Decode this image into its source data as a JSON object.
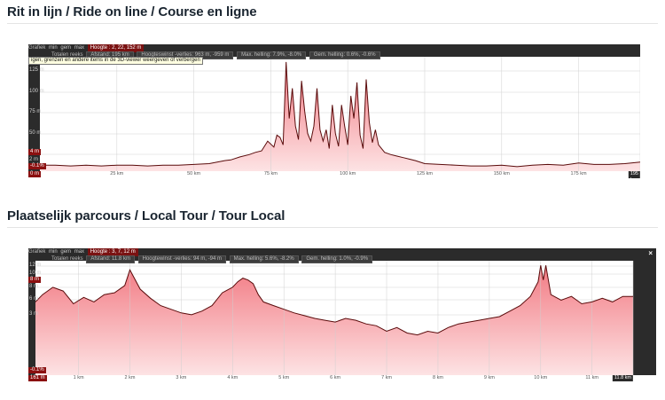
{
  "sections": [
    {
      "title": "Rit in lijn / Ride on line / Course en ligne",
      "header": {
        "grafiek": "Grafiek",
        "mn": "min",
        "gem": "gem",
        "max": "max",
        "hoogte": "Hoogte : 2, 22, 152 m",
        "totalen": "Totalen reeks",
        "afstand": "Afstand: 195 km",
        "hoogteverschil": "Hoogteswinst -verlies: 963 m, -959 m",
        "max_helling": "Max. helling: 7.9%, -8.0%",
        "gem_helling": "Gem. helling: 0.6%, -0.6%"
      },
      "tooltip": "igen, grenzen en andere items in de 3D-viewer weergeven of verbergen",
      "y_ticks": [
        "125 m",
        "100 m",
        "75 m",
        "50 m",
        "25 m",
        "2 m"
      ],
      "x_ticks": [
        "0 m",
        "25 km",
        "50 km",
        "75 km",
        "100 km",
        "125 km",
        "150 km",
        "175 km",
        "195 km"
      ],
      "markers": {
        "current": "4 m",
        "slope": "-0.1%",
        "start": "0 m"
      }
    },
    {
      "title": "Plaatselijk parcours / Local Tour / Tour Local",
      "header": {
        "grafiek": "Grafiek",
        "mn": "min",
        "gem": "gem",
        "max": "max",
        "hoogte": "Hoogte : 3, 7, 12 m",
        "totalen": "Totalen reeks",
        "afstand": "Afstand: 11.8 km",
        "hoogteverschil": "Hoogtewinst -verlies: 94 m, -94 m",
        "max_helling": "Max. helling: 5.6%, -8.2%",
        "gem_helling": "Gem. helling: 1.0%, -0.9%"
      },
      "close": "×",
      "y_ticks": [
        "12 m",
        "10 m",
        "8 m",
        "6 m",
        "3 m"
      ],
      "x_ticks": [
        "161 m",
        "1 km",
        "2 km",
        "3 km",
        "4 km",
        "5 km",
        "6 km",
        "7 km",
        "8 km",
        "9 km",
        "10 km",
        "11 km",
        "11.8 km"
      ],
      "markers": {
        "current": "8 m",
        "slope": "-0.1%",
        "start": "161 m"
      }
    }
  ],
  "colors": {
    "fill_top": "#f27a83",
    "fill_bottom": "#fde3e4",
    "line": "#5a0b0b",
    "grid": "#cfcfcf",
    "title": "#1a2530"
  },
  "chart_data": [
    {
      "type": "area",
      "xlabel": "",
      "ylabel": "",
      "xlim": [
        0,
        195
      ],
      "ylim": [
        0,
        152
      ],
      "x": [
        0,
        5,
        10,
        15,
        20,
        25,
        30,
        35,
        40,
        45,
        50,
        55,
        60,
        62,
        65,
        68,
        70,
        72,
        74,
        76,
        77,
        78,
        79,
        80,
        81,
        82,
        83,
        84,
        85,
        86,
        87,
        88,
        89,
        90,
        91,
        92,
        93,
        94,
        95,
        96,
        97,
        98,
        99,
        100,
        101,
        102,
        103,
        104,
        105,
        106,
        107,
        108,
        109,
        110,
        112,
        114,
        116,
        118,
        120,
        122,
        125,
        130,
        135,
        140,
        145,
        150,
        155,
        160,
        165,
        170,
        175,
        180,
        185,
        190,
        195
      ],
      "y": [
        8,
        8,
        7,
        8,
        7,
        8,
        8,
        7,
        8,
        8,
        9,
        10,
        14,
        15,
        19,
        22,
        25,
        27,
        40,
        32,
        48,
        45,
        35,
        145,
        70,
        110,
        60,
        42,
        120,
        80,
        50,
        40,
        60,
        110,
        55,
        40,
        55,
        30,
        88,
        50,
        33,
        88,
        60,
        35,
        100,
        70,
        118,
        48,
        30,
        122,
        65,
        38,
        55,
        35,
        25,
        22,
        20,
        18,
        16,
        14,
        10,
        9,
        8,
        7,
        7,
        8,
        6,
        8,
        9,
        8,
        11,
        9,
        9,
        10,
        12
      ]
    },
    {
      "type": "area",
      "xlabel": "",
      "ylabel": "",
      "xlim": [
        0.161,
        11.8
      ],
      "ylim": [
        0,
        12.5
      ],
      "x": [
        0.161,
        0.3,
        0.5,
        0.7,
        0.9,
        1.1,
        1.3,
        1.5,
        1.7,
        1.9,
        2.0,
        2.2,
        2.4,
        2.6,
        2.8,
        3.0,
        3.2,
        3.4,
        3.6,
        3.8,
        4.0,
        4.1,
        4.2,
        4.3,
        4.4,
        4.5,
        4.6,
        4.8,
        5.0,
        5.2,
        5.4,
        5.6,
        5.8,
        6.0,
        6.2,
        6.4,
        6.6,
        6.8,
        7.0,
        7.2,
        7.4,
        7.6,
        7.8,
        8.0,
        8.2,
        8.4,
        8.6,
        8.8,
        9.0,
        9.2,
        9.4,
        9.6,
        9.8,
        9.95,
        10.0,
        10.05,
        10.1,
        10.2,
        10.4,
        10.6,
        10.8,
        11.0,
        11.2,
        11.4,
        11.6,
        11.8
      ],
      "y": [
        8.0,
        8.8,
        9.6,
        9.2,
        7.8,
        8.5,
        8.0,
        8.8,
        9.0,
        9.8,
        11.5,
        9.4,
        8.4,
        7.6,
        7.2,
        6.8,
        6.6,
        7.0,
        7.6,
        9.0,
        9.6,
        10.2,
        10.6,
        10.4,
        10.0,
        8.8,
        8.0,
        7.6,
        7.2,
        6.8,
        6.5,
        6.2,
        6.0,
        5.8,
        6.2,
        6.0,
        5.6,
        5.4,
        4.8,
        5.2,
        4.6,
        4.4,
        4.8,
        4.6,
        5.2,
        5.6,
        5.8,
        6.0,
        6.2,
        6.4,
        7.0,
        7.6,
        8.6,
        10.2,
        12.0,
        10.4,
        12.0,
        8.8,
        8.2,
        8.6,
        7.8,
        8.0,
        8.4,
        8.0,
        8.6,
        8.6
      ]
    }
  ]
}
